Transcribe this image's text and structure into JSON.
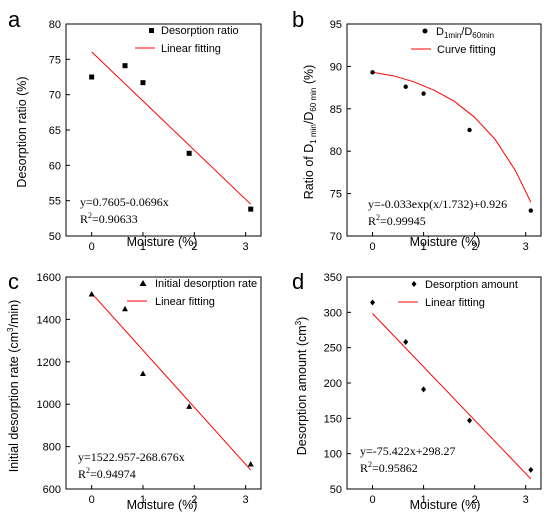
{
  "figure": {
    "title": "",
    "panel_letters": [
      "a",
      "b",
      "c",
      "d"
    ]
  },
  "colors": {
    "marker": "#000000",
    "fit_line": "#ff0000",
    "axis": "#000000"
  },
  "chart_data": [
    {
      "panel": "a",
      "type": "scatter",
      "xlabel": "Moisture (%)",
      "ylabel": "Desorption ratio (%)",
      "xlim": [
        -0.5,
        3.3
      ],
      "ylim": [
        50,
        80
      ],
      "xticks": [
        0,
        1,
        2,
        3
      ],
      "yticks": [
        50,
        55,
        60,
        65,
        70,
        75,
        80
      ],
      "series": [
        {
          "name": "Desorption ratio",
          "marker": "square",
          "x": [
            0,
            0.65,
            1.0,
            1.9,
            3.1
          ],
          "y": [
            72.5,
            74.1,
            71.7,
            61.7,
            53.8
          ]
        },
        {
          "name": "Linear fitting",
          "kind": "line",
          "x": [
            0,
            3.1
          ],
          "y": [
            76.05,
            54.5
          ]
        }
      ],
      "annotation": {
        "equation": "y=0.7605-0.0696x",
        "r2_prefix": "R",
        "r2_sup": "2",
        "r2_value": "=0.90633"
      }
    },
    {
      "panel": "b",
      "type": "scatter",
      "xlabel": "Moisture (%)",
      "ylabel": "Ratio of D1 min/D60 min (%)",
      "xlim": [
        -0.5,
        3.3
      ],
      "ylim": [
        70,
        95
      ],
      "xticks": [
        0,
        1,
        2,
        3
      ],
      "yticks": [
        70,
        75,
        80,
        85,
        90,
        95
      ],
      "series": [
        {
          "name": "D1min/D60min",
          "marker": "circle",
          "x": [
            0,
            0.65,
            1.0,
            1.9,
            3.1
          ],
          "y": [
            89.3,
            87.6,
            86.8,
            82.5,
            73.0
          ]
        },
        {
          "name": "Curve fitting",
          "kind": "curve",
          "model": "exp",
          "x": [
            0,
            0.4,
            0.8,
            1.2,
            1.6,
            2.0,
            2.4,
            2.8,
            3.1
          ],
          "y": [
            89.3,
            88.9,
            88.2,
            87.2,
            85.9,
            84.0,
            81.4,
            77.7,
            74.0
          ]
        }
      ],
      "annotation": {
        "equation": "y=-0.033exp(x/1.732)+0.926",
        "r2_prefix": "R",
        "r2_sup": "2",
        "r2_value": "=0.99945"
      }
    },
    {
      "panel": "c",
      "type": "scatter",
      "xlabel": "Moisture (%)",
      "ylabel": "Initial desorption rate (cm3/min)",
      "xlim": [
        -0.5,
        3.3
      ],
      "ylim": [
        600,
        1600
      ],
      "xticks": [
        0,
        1,
        2,
        3
      ],
      "yticks": [
        600,
        800,
        1000,
        1200,
        1400,
        1600
      ],
      "series": [
        {
          "name": "Initial desorption rate",
          "marker": "triangle",
          "x": [
            0,
            0.65,
            1.0,
            1.9,
            3.1
          ],
          "y": [
            1520,
            1450,
            1145,
            990,
            718
          ]
        },
        {
          "name": "Linear fitting",
          "kind": "line",
          "x": [
            0,
            3.1
          ],
          "y": [
            1523,
            690
          ]
        }
      ],
      "annotation": {
        "equation": "y=1522.957-268.676x",
        "r2_prefix": "R",
        "r2_sup": "2",
        "r2_value": "=0.94974"
      }
    },
    {
      "panel": "d",
      "type": "scatter",
      "xlabel": "Moisture (%)",
      "ylabel": "Desorption amount (cm3)",
      "xlim": [
        -0.5,
        3.3
      ],
      "ylim": [
        50,
        350
      ],
      "xticks": [
        0,
        1,
        2,
        3
      ],
      "yticks": [
        50,
        100,
        150,
        200,
        250,
        300,
        350
      ],
      "series": [
        {
          "name": "Desorption amount",
          "marker": "diamond",
          "x": [
            0,
            0.65,
            1.0,
            1.9,
            3.1
          ],
          "y": [
            314,
            258,
            191,
            147,
            77
          ]
        },
        {
          "name": "Linear fitting",
          "kind": "line",
          "x": [
            0,
            3.1
          ],
          "y": [
            298.3,
            64.5
          ]
        }
      ],
      "annotation": {
        "equation": "y=-75.422x+298.27",
        "r2_prefix": "R",
        "r2_sup": "2",
        "r2_value": "=0.95862"
      }
    }
  ]
}
